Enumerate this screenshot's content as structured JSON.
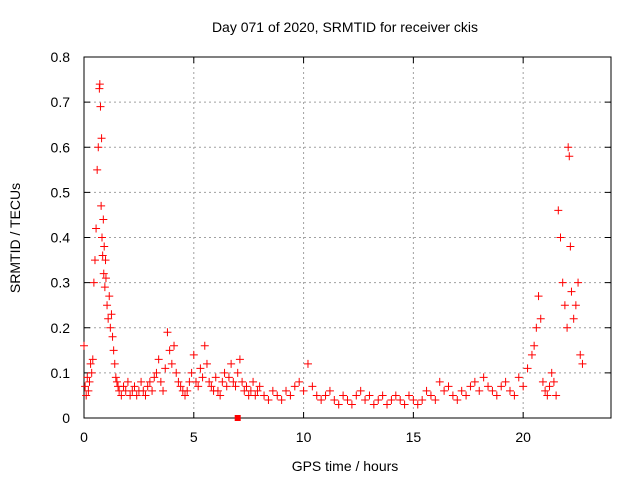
{
  "chart_data": {
    "type": "scatter",
    "title": "Day 071 of 2020, SRMTID for receiver ckis",
    "xlabel": "GPS time / hours",
    "ylabel": "SRMTID / TECUs",
    "xlim": [
      0,
      24
    ],
    "ylim": [
      0,
      0.8
    ],
    "xticks": [
      0,
      5,
      10,
      15,
      20
    ],
    "xtick_labels": [
      "0",
      "5",
      "10",
      "15",
      "20"
    ],
    "yticks": [
      0,
      0.1,
      0.2,
      0.3,
      0.4,
      0.5,
      0.6,
      0.7,
      0.8
    ],
    "ytick_labels": [
      "0",
      "0.1",
      "0.2",
      "0.3",
      "0.4",
      "0.5",
      "0.6",
      "0.7",
      "0.8"
    ],
    "grid": true,
    "marker": "+",
    "series": [
      {
        "name": "SRMTID",
        "color": "#ff0000",
        "x": [
          0.0,
          0.05,
          0.1,
          0.15,
          0.2,
          0.25,
          0.3,
          0.35,
          0.4,
          0.45,
          0.5,
          0.55,
          0.6,
          0.65,
          0.7,
          0.72,
          0.75,
          0.78,
          0.8,
          0.82,
          0.85,
          0.88,
          0.9,
          0.92,
          0.95,
          0.98,
          1.0,
          1.05,
          1.1,
          1.15,
          1.2,
          1.25,
          1.3,
          1.35,
          1.4,
          1.45,
          1.5,
          1.55,
          1.6,
          1.7,
          1.8,
          1.9,
          2.0,
          2.1,
          2.2,
          2.3,
          2.4,
          2.5,
          2.6,
          2.7,
          2.8,
          2.9,
          3.0,
          3.1,
          3.2,
          3.3,
          3.4,
          3.5,
          3.6,
          3.7,
          3.8,
          3.9,
          4.0,
          4.1,
          4.2,
          4.3,
          4.4,
          4.5,
          4.6,
          4.7,
          4.8,
          4.9,
          5.0,
          5.1,
          5.2,
          5.3,
          5.4,
          5.5,
          5.6,
          5.7,
          5.8,
          5.9,
          6.0,
          6.1,
          6.2,
          6.3,
          6.4,
          6.5,
          6.6,
          6.7,
          6.8,
          6.9,
          7.0,
          7.1,
          7.2,
          7.3,
          7.4,
          7.5,
          7.6,
          7.7,
          7.8,
          7.9,
          8.0,
          8.2,
          8.4,
          8.6,
          8.8,
          9.0,
          9.2,
          9.4,
          9.6,
          9.8,
          10.0,
          10.2,
          10.4,
          10.6,
          10.8,
          11.0,
          11.2,
          11.4,
          11.6,
          11.8,
          12.0,
          12.2,
          12.4,
          12.6,
          12.8,
          13.0,
          13.2,
          13.4,
          13.6,
          13.8,
          14.0,
          14.2,
          14.4,
          14.6,
          14.8,
          15.0,
          15.2,
          15.4,
          15.6,
          15.8,
          16.0,
          16.2,
          16.4,
          16.6,
          16.8,
          17.0,
          17.2,
          17.4,
          17.6,
          17.8,
          18.0,
          18.2,
          18.4,
          18.6,
          18.8,
          19.0,
          19.2,
          19.4,
          19.6,
          19.8,
          20.0,
          20.2,
          20.4,
          20.5,
          20.6,
          20.7,
          20.8,
          20.9,
          21.0,
          21.1,
          21.2,
          21.3,
          21.4,
          21.5,
          21.6,
          21.7,
          21.8,
          21.9,
          22.0,
          22.05,
          22.1,
          22.15,
          22.2,
          22.3,
          22.4,
          22.5,
          22.6,
          22.7
        ],
        "y": [
          0.16,
          0.07,
          0.05,
          0.09,
          0.06,
          0.08,
          0.12,
          0.1,
          0.13,
          0.3,
          0.35,
          0.42,
          0.55,
          0.6,
          0.73,
          0.74,
          0.69,
          0.47,
          0.62,
          0.4,
          0.36,
          0.44,
          0.32,
          0.38,
          0.29,
          0.35,
          0.31,
          0.25,
          0.22,
          0.27,
          0.2,
          0.23,
          0.18,
          0.15,
          0.12,
          0.09,
          0.08,
          0.07,
          0.06,
          0.05,
          0.07,
          0.06,
          0.08,
          0.05,
          0.06,
          0.07,
          0.05,
          0.06,
          0.08,
          0.06,
          0.05,
          0.07,
          0.08,
          0.06,
          0.09,
          0.1,
          0.13,
          0.08,
          0.06,
          0.11,
          0.19,
          0.15,
          0.12,
          0.16,
          0.1,
          0.08,
          0.07,
          0.06,
          0.05,
          0.06,
          0.08,
          0.1,
          0.14,
          0.08,
          0.07,
          0.11,
          0.09,
          0.16,
          0.12,
          0.08,
          0.07,
          0.06,
          0.09,
          0.06,
          0.05,
          0.08,
          0.1,
          0.07,
          0.09,
          0.12,
          0.08,
          0.07,
          0.1,
          0.13,
          0.08,
          0.06,
          0.07,
          0.05,
          0.06,
          0.08,
          0.05,
          0.06,
          0.07,
          0.05,
          0.04,
          0.06,
          0.05,
          0.04,
          0.06,
          0.05,
          0.07,
          0.08,
          0.06,
          0.12,
          0.07,
          0.05,
          0.04,
          0.05,
          0.06,
          0.04,
          0.03,
          0.05,
          0.04,
          0.03,
          0.05,
          0.06,
          0.04,
          0.05,
          0.03,
          0.04,
          0.05,
          0.03,
          0.04,
          0.05,
          0.04,
          0.03,
          0.05,
          0.04,
          0.03,
          0.04,
          0.06,
          0.05,
          0.04,
          0.08,
          0.06,
          0.07,
          0.05,
          0.04,
          0.06,
          0.05,
          0.07,
          0.08,
          0.06,
          0.09,
          0.07,
          0.06,
          0.05,
          0.07,
          0.08,
          0.06,
          0.05,
          0.09,
          0.07,
          0.11,
          0.14,
          0.16,
          0.2,
          0.27,
          0.22,
          0.08,
          0.06,
          0.05,
          0.07,
          0.1,
          0.08,
          0.05,
          0.46,
          0.4,
          0.3,
          0.25,
          0.2,
          0.6,
          0.58,
          0.38,
          0.28,
          0.22,
          0.25,
          0.3,
          0.14,
          0.12
        ]
      }
    ],
    "outlier_squares": [
      {
        "x": 7.0,
        "y": 0.0
      }
    ]
  }
}
